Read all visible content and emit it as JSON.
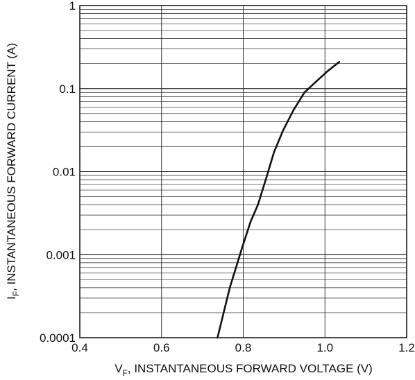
{
  "chart_data": {
    "type": "line",
    "title": "",
    "xlabel": {
      "symbol": "V",
      "subscript": "F",
      "text": ", INSTANTANEOUS FORWARD VOLTAGE (V)"
    },
    "ylabel": {
      "symbol": "I",
      "subscript": "F",
      "text": ", INSTANTANEOUS FORWARD CURRENT (A)"
    },
    "xlim": [
      0.4,
      1.2
    ],
    "ylim": [
      0.0001,
      1
    ],
    "yscale": "log",
    "grid": true,
    "x_ticks": [
      0.4,
      0.6,
      0.8,
      1.0,
      1.2
    ],
    "x_tick_labels": [
      "0.4",
      "0.6",
      "0.8",
      "1.0",
      "1.2"
    ],
    "y_ticks": [
      0.0001,
      0.001,
      0.01,
      0.1,
      1
    ],
    "y_tick_labels": [
      "0.0001",
      "0.001",
      "0.01",
      "0.1",
      "1"
    ],
    "series": [
      {
        "color": "#111111",
        "points": [
          [
            0.737,
            0.0001
          ],
          [
            0.767,
            0.0004
          ],
          [
            0.797,
            0.0012
          ],
          [
            0.818,
            0.0025
          ],
          [
            0.836,
            0.004
          ],
          [
            0.855,
            0.008
          ],
          [
            0.875,
            0.017
          ],
          [
            0.897,
            0.031
          ],
          [
            0.923,
            0.055
          ],
          [
            0.95,
            0.09
          ],
          [
            0.985,
            0.13
          ],
          [
            1.005,
            0.16
          ],
          [
            1.035,
            0.21
          ]
        ]
      }
    ]
  }
}
